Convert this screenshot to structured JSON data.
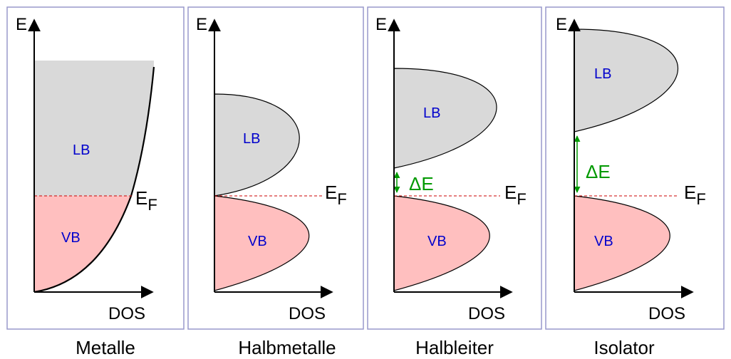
{
  "colors": {
    "panel_border": "#9999cc",
    "conduction_band": "#d9d9d9",
    "valence_band": "#ffbfbf",
    "band_label": "#0000cc",
    "gap_annotation": "#009900",
    "fermi_line": "#cc0000",
    "axis": "#000000"
  },
  "axis_labels": {
    "energy": "E",
    "dos": "DOS"
  },
  "fermi_label": {
    "main": "E",
    "sub": "F"
  },
  "band_labels": {
    "conduction": "LB",
    "valence": "VB"
  },
  "gap_label": "ΔE",
  "panels": [
    {
      "title": "Metalle",
      "has_gap": false
    },
    {
      "title": "Halbmetalle",
      "has_gap": false
    },
    {
      "title": "Halbleiter",
      "has_gap": true
    },
    {
      "title": "Isolator",
      "has_gap": true
    }
  ]
}
